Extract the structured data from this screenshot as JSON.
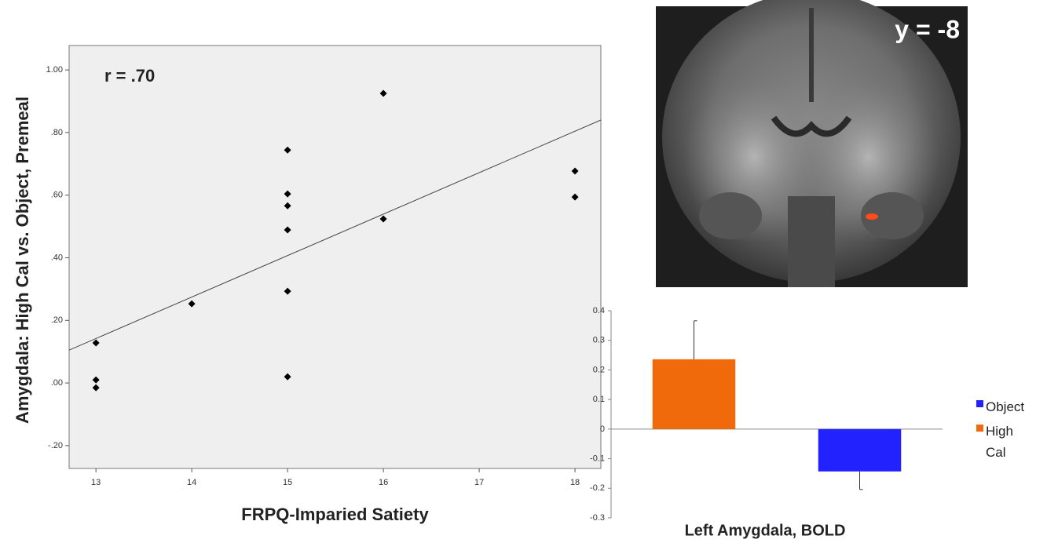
{
  "chart_data": [
    {
      "type": "scatter",
      "annotation": "r = .70",
      "xlabel": "FRPQ-Imparied Satiety",
      "ylabel": "Amygdala: High Cal vs. Object, Premeal",
      "x": [
        13,
        13,
        13,
        14,
        15,
        15,
        15,
        15,
        15,
        15,
        16,
        16,
        18,
        18
      ],
      "values": [
        0.128,
        0.01,
        -0.015,
        0.253,
        0.744,
        0.604,
        0.566,
        0.489,
        0.293,
        0.02,
        0.925,
        0.524,
        0.677,
        0.594
      ],
      "color": "#000000",
      "fit_line": {
        "x": [
          12.72,
          18.27
        ],
        "y": [
          0.105,
          0.84
        ]
      },
      "xlim": [
        12.72,
        18.27
      ],
      "ylim": [
        -0.273,
        1.078
      ],
      "xticks": [
        13,
        14,
        15,
        16,
        17,
        18
      ],
      "yticks": [
        {
          "value": 1,
          "label": "1.00"
        },
        {
          "value": 0.8,
          "label": ".80"
        },
        {
          "value": 0.6,
          "label": ".60"
        },
        {
          "value": 0.4,
          "label": ".40"
        },
        {
          "value": 0.2,
          "label": ".20"
        },
        {
          "value": 0,
          "label": ".00"
        },
        {
          "value": -0.2,
          "label": "-.20"
        }
      ],
      "grid": false
    },
    {
      "type": "bar",
      "xlabel": "Left Amygdala, BOLD",
      "series": [
        {
          "name": "Object",
          "color": "#2222ff",
          "values": [
            -0.143
          ],
          "errors": [
            0.061
          ]
        },
        {
          "name": "High Cal",
          "color": "#f06a0c",
          "values": [
            0.236
          ],
          "errors": [
            0.13
          ]
        }
      ],
      "ylim": [
        -0.3,
        0.4
      ],
      "yticks": [
        0.4,
        0.3,
        0.2,
        0.1,
        0,
        -0.1,
        -0.2,
        -0.3
      ],
      "legend": "right"
    }
  ],
  "brain_image": {
    "label": "y = -8"
  }
}
